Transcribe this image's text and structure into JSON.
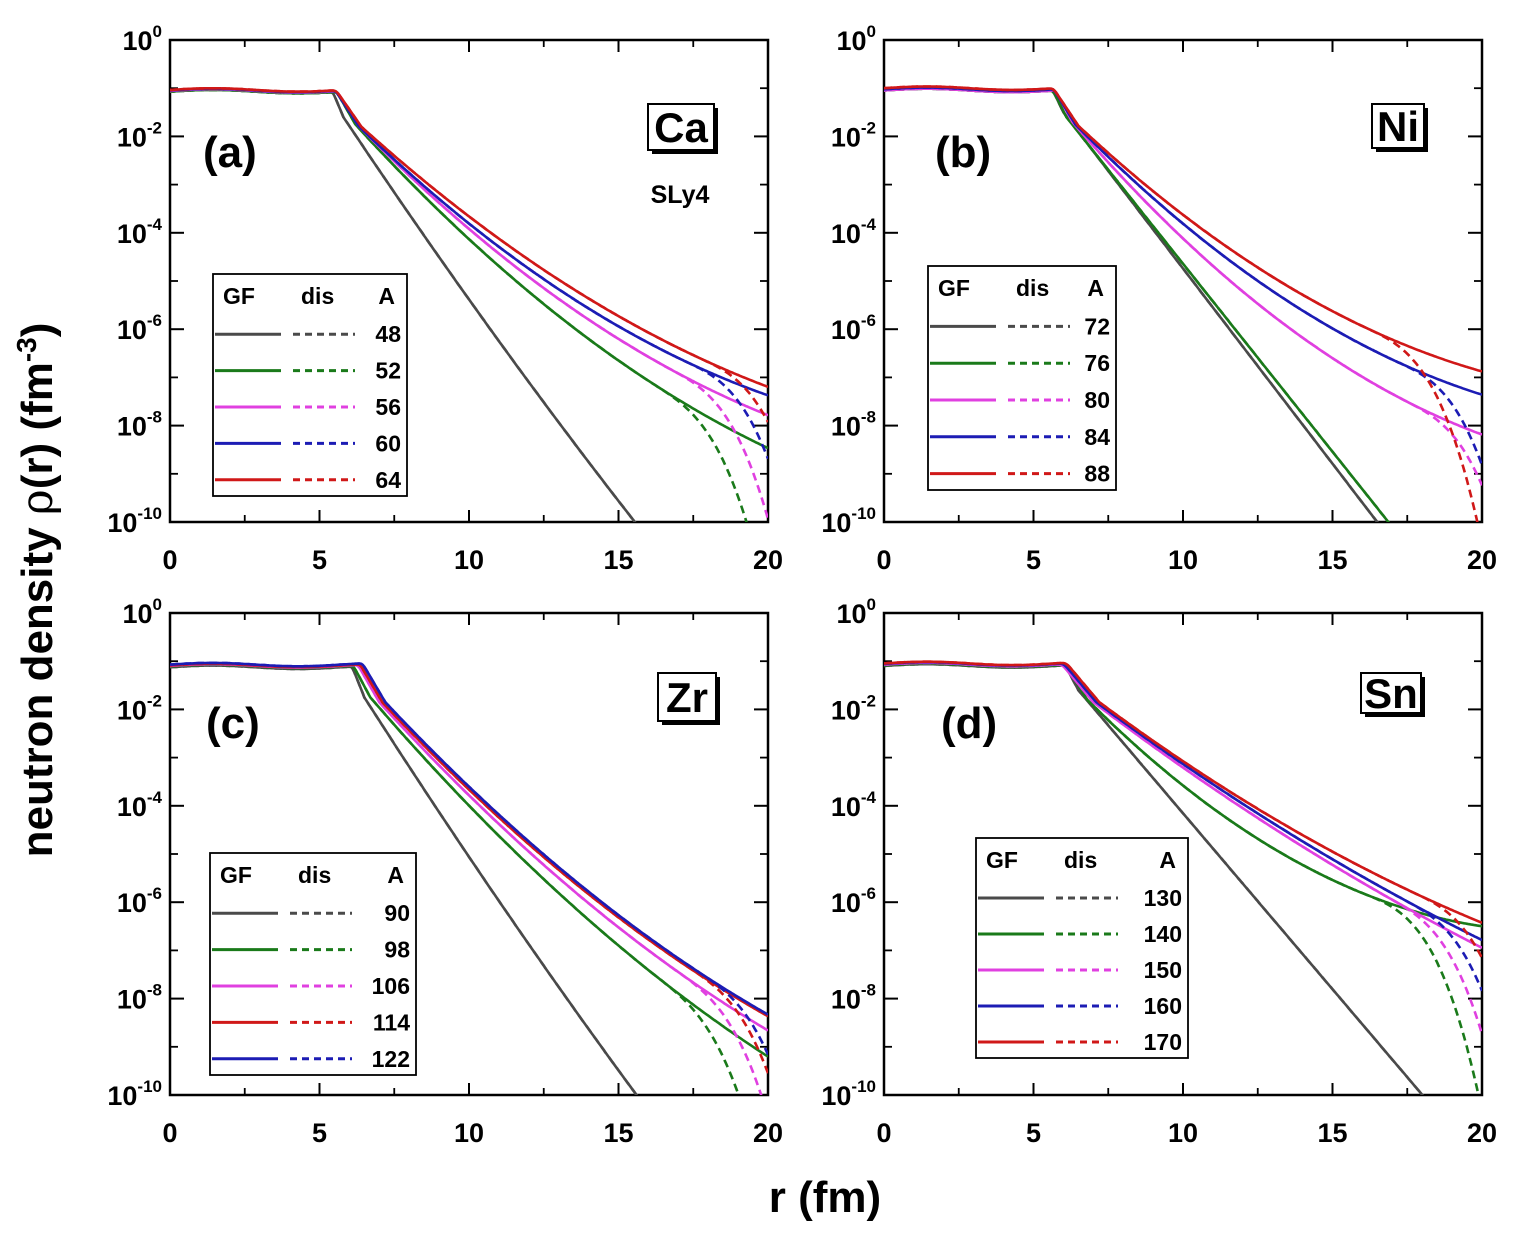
{
  "figure": {
    "xlabel": "r (fm)",
    "ylabel_prefix": "neutron density ",
    "ylabel_rho": "ρ",
    "ylabel_mid": "(r) (fm",
    "ylabel_exp": "-3",
    "ylabel_end": ")",
    "legend_headers": [
      "GF",
      "dis",
      "A"
    ],
    "colors": {
      "gray": "#4a4a4a",
      "green": "#1a7a1a",
      "magenta": "#e040e0",
      "blue": "#1c1cb4",
      "red": "#d01818"
    }
  },
  "chart_data": [
    {
      "type": "line",
      "panel": "(a)",
      "element": "Ca",
      "note": "SLy4",
      "xlim": [
        0,
        20
      ],
      "ylim": [
        1e-10,
        1
      ],
      "yscale": "log",
      "xticks": [
        "0",
        "5",
        "10",
        "15",
        "20"
      ],
      "yticks": [
        "10^0",
        "10^-2",
        "10^-4",
        "10^-6",
        "10^-8",
        "10^-10"
      ],
      "legend_placement": "lower-left",
      "series": [
        {
          "A": "48",
          "color": "#4a4a4a",
          "core": 0.085,
          "surf_r": 5.3,
          "tail_r": 5.8,
          "tail_logrho": -1.6,
          "slope": 0.93,
          "curv": 0.007,
          "dis_drop": 0
        },
        {
          "A": "52",
          "color": "#1a7a1a",
          "core": 0.085,
          "surf_r": 5.5,
          "tail_r": 6.2,
          "tail_logrho": -1.75,
          "slope": 0.68,
          "curv": 0.014,
          "dis_drop": 18.4
        },
        {
          "A": "56",
          "color": "#e040e0",
          "core": 0.088,
          "surf_r": 5.6,
          "tail_r": 6.3,
          "tail_logrho": -1.78,
          "slope": 0.63,
          "curv": 0.014,
          "dis_drop": 18.9
        },
        {
          "A": "60",
          "color": "#1c1cb4",
          "core": 0.09,
          "surf_r": 5.6,
          "tail_r": 6.3,
          "tail_logrho": -1.78,
          "slope": 0.6,
          "curv": 0.014,
          "dis_drop": 19.4
        },
        {
          "A": "64",
          "color": "#d01818",
          "core": 0.092,
          "surf_r": 5.7,
          "tail_r": 6.4,
          "tail_logrho": -1.8,
          "slope": 0.56,
          "curv": 0.012,
          "dis_drop": 19.9
        }
      ]
    },
    {
      "type": "line",
      "panel": "(b)",
      "element": "Ni",
      "note": "",
      "xlim": [
        0,
        20
      ],
      "ylim": [
        1e-10,
        1
      ],
      "yscale": "log",
      "xticks": [
        "0",
        "5",
        "10",
        "15",
        "20"
      ],
      "yticks": [
        "10^0",
        "10^-2",
        "10^-4",
        "10^-6",
        "10^-8",
        "10^-10"
      ],
      "legend_placement": "lower-left",
      "series": [
        {
          "A": "72",
          "color": "#4a4a4a",
          "core": 0.09,
          "surf_r": 5.6,
          "tail_r": 6.0,
          "tail_logrho": -1.5,
          "slope": 0.81,
          "curv": 0.0,
          "dis_drop": 0
        },
        {
          "A": "76",
          "color": "#1a7a1a",
          "core": 0.09,
          "surf_r": 5.7,
          "tail_r": 6.1,
          "tail_logrho": -1.6,
          "slope": 0.78,
          "curv": 0.0,
          "dis_drop": 0
        },
        {
          "A": "80",
          "color": "#e040e0",
          "core": 0.09,
          "surf_r": 5.8,
          "tail_r": 6.3,
          "tail_logrho": -1.7,
          "slope": 0.72,
          "curv": 0.018,
          "dis_drop": 19.6
        },
        {
          "A": "84",
          "color": "#1c1cb4",
          "core": 0.095,
          "surf_r": 5.9,
          "tail_r": 6.4,
          "tail_logrho": -1.75,
          "slope": 0.63,
          "curv": 0.016,
          "dis_drop": 19.3
        },
        {
          "A": "88",
          "color": "#d01818",
          "core": 0.1,
          "surf_r": 6.0,
          "tail_r": 6.5,
          "tail_logrho": -1.78,
          "slope": 0.58,
          "curv": 0.015,
          "dis_drop": 18.3
        }
      ]
    },
    {
      "type": "line",
      "panel": "(c)",
      "element": "Zr",
      "note": "",
      "xlim": [
        0,
        20
      ],
      "ylim": [
        1e-10,
        1
      ],
      "yscale": "log",
      "xticks": [
        "0",
        "5",
        "10",
        "15",
        "20"
      ],
      "yticks": [
        "10^0",
        "10^-2",
        "10^-4",
        "10^-6",
        "10^-8",
        "10^-10"
      ],
      "legend_placement": "lower-left",
      "series": [
        {
          "A": "90",
          "color": "#4a4a4a",
          "core": 0.075,
          "surf_r": 5.7,
          "tail_r": 6.5,
          "tail_logrho": -1.75,
          "slope": 0.97,
          "curv": 0.007,
          "dis_drop": 0
        },
        {
          "A": "98",
          "color": "#1a7a1a",
          "core": 0.078,
          "surf_r": 6.0,
          "tail_r": 6.7,
          "tail_logrho": -1.75,
          "slope": 0.72,
          "curv": 0.012,
          "dis_drop": 18.5
        },
        {
          "A": "106",
          "color": "#e040e0",
          "core": 0.08,
          "surf_r": 6.2,
          "tail_r": 7.0,
          "tail_logrho": -1.85,
          "slope": 0.68,
          "curv": 0.012,
          "dis_drop": 19.1
        },
        {
          "A": "114",
          "color": "#d01818",
          "core": 0.082,
          "surf_r": 6.3,
          "tail_r": 7.1,
          "tail_logrho": -1.85,
          "slope": 0.66,
          "curv": 0.012,
          "dis_drop": 19.5
        },
        {
          "A": "122",
          "color": "#1c1cb4",
          "core": 0.085,
          "surf_r": 6.4,
          "tail_r": 7.2,
          "tail_logrho": -1.85,
          "slope": 0.66,
          "curv": 0.012,
          "dis_drop": 19.8
        }
      ]
    },
    {
      "type": "line",
      "panel": "(d)",
      "element": "Sn",
      "note": "",
      "xlim": [
        0,
        20
      ],
      "ylim": [
        1e-10,
        1
      ],
      "yscale": "log",
      "xticks": [
        "0",
        "5",
        "10",
        "15",
        "20"
      ],
      "yticks": [
        "10^0",
        "10^-2",
        "10^-4",
        "10^-6",
        "10^-8",
        "10^-10"
      ],
      "legend_placement": "lower-left",
      "series": [
        {
          "A": "130",
          "color": "#4a4a4a",
          "core": 0.08,
          "surf_r": 6.0,
          "tail_r": 6.5,
          "tail_logrho": -1.6,
          "slope": 0.73,
          "curv": 0.0,
          "dis_drop": 0
        },
        {
          "A": "140",
          "color": "#1a7a1a",
          "core": 0.082,
          "surf_r": 6.2,
          "tail_r": 6.8,
          "tail_logrho": -1.8,
          "slope": 0.62,
          "curv": 0.02,
          "dis_drop": 18.2
        },
        {
          "A": "150",
          "color": "#e040e0",
          "core": 0.085,
          "surf_r": 6.4,
          "tail_r": 7.0,
          "tail_logrho": -1.85,
          "slope": 0.47,
          "curv": 0.006,
          "dis_drop": 19.1
        },
        {
          "A": "160",
          "color": "#1c1cb4",
          "core": 0.088,
          "surf_r": 6.5,
          "tail_r": 7.1,
          "tail_logrho": -1.85,
          "slope": 0.46,
          "curv": 0.006,
          "dis_drop": 19.6
        },
        {
          "A": "170",
          "color": "#d01818",
          "core": 0.09,
          "surf_r": 6.6,
          "tail_r": 7.2,
          "tail_logrho": -1.85,
          "slope": 0.46,
          "curv": 0.008,
          "dis_drop": 19.9
        }
      ]
    }
  ]
}
